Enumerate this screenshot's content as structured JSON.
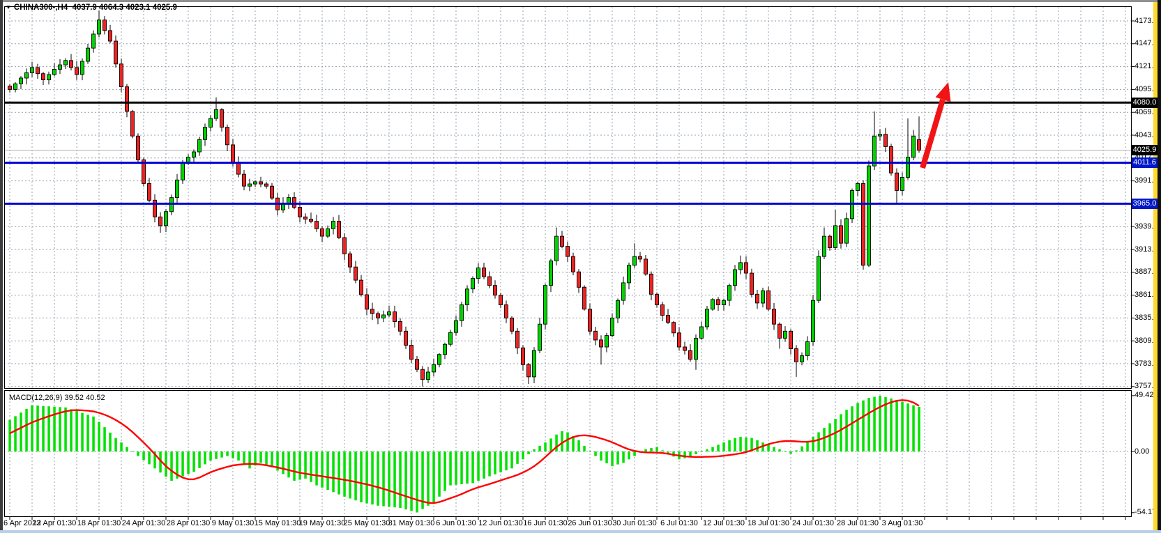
{
  "ui": {
    "title": {
      "dropdown_icon": "▼",
      "symbol_tf": "CHINA300-,H4",
      "ohlc": "4037.9 4064.3 4023.1 4025.9"
    },
    "colors": {
      "candle_up": "#00d200",
      "candle_down": "#ee2222",
      "candle_outline": "#000000",
      "macd_histogram": "#00e100",
      "macd_signal": "#ff0000",
      "level_black": "#000000",
      "level_blue": "#0000d2",
      "current_price_line": "#b0b0b0",
      "grid": "#95a1af",
      "arrow": "#f01414",
      "badge_black_bg": "#000000",
      "badge_blue_bg": "#0018c8",
      "axis_text": "#000000",
      "right_edge_yellow": "#ffd92e"
    }
  },
  "chart_data": {
    "type": "candlestick",
    "symbol": "CHINA300-",
    "timeframe": "H4",
    "current_ohlc": {
      "open": 4037.9,
      "high": 4064.3,
      "low": 4023.1,
      "close": 4025.9
    },
    "price_axis": {
      "tick_labels": [
        "4173.0",
        "4147.0",
        "4121.0",
        "4095.0",
        "4069.0",
        "4043.0",
        "4017.0",
        "3991.0",
        "3965.0",
        "3939.0",
        "3913.0",
        "3887.0",
        "3861.0",
        "3835.0",
        "3809.0",
        "3783.0",
        "3757.0"
      ],
      "badges": [
        {
          "label": "4080.0",
          "price": 4080.0,
          "bg": "#000000"
        },
        {
          "label": "4025.9",
          "price": 4025.9,
          "bg": "#000000"
        },
        {
          "label": "4011.6",
          "price": 4011.6,
          "bg": "#0018c8"
        },
        {
          "label": "3965.0",
          "price": 3965.0,
          "bg": "#0018c8"
        }
      ]
    },
    "levels": {
      "resistance_black": 4080.0,
      "current_price": 4025.9,
      "support_blue_upper": 4011.6,
      "support_blue_lower": 3965.0
    },
    "time_axis": {
      "labels": [
        "6 Apr 2023",
        "12 Apr 01:30",
        "18 Apr 01:30",
        "24 Apr 01:30",
        "28 Apr 01:30",
        "9 May 01:30",
        "15 May 01:30",
        "19 May 01:30",
        "25 May 01:30",
        "31 May 01:30",
        "6 Jun 01:30",
        "12 Jun 01:30",
        "16 Jun 01:30",
        "26 Jun 01:30",
        "30 Jun 01:30",
        "6 Jul 01:30",
        "12 Jul 01:30",
        "18 Jul 01:30",
        "24 Jul 01:30",
        "28 Jul 01:30",
        "3 Aug 01:30"
      ]
    },
    "candles": {
      "count": 164,
      "close_keyframes": [
        [
          0,
          4095
        ],
        [
          2,
          4108
        ],
        [
          4,
          4120
        ],
        [
          6,
          4106
        ],
        [
          8,
          4118
        ],
        [
          10,
          4128
        ],
        [
          12,
          4112
        ],
        [
          14,
          4142
        ],
        [
          16,
          4174
        ],
        [
          18,
          4150
        ],
        [
          20,
          4098
        ],
        [
          22,
          4042
        ],
        [
          24,
          3988
        ],
        [
          26,
          3950
        ],
        [
          27,
          3940
        ],
        [
          29,
          3972
        ],
        [
          31,
          4012
        ],
        [
          33,
          4024
        ],
        [
          35,
          4052
        ],
        [
          37,
          4072
        ],
        [
          39,
          4032
        ],
        [
          40,
          4012
        ],
        [
          42,
          3985
        ],
        [
          44,
          3990
        ],
        [
          46,
          3985
        ],
        [
          48,
          3958
        ],
        [
          50,
          3972
        ],
        [
          52,
          3950
        ],
        [
          54,
          3945
        ],
        [
          56,
          3928
        ],
        [
          58,
          3945
        ],
        [
          60,
          3908
        ],
        [
          62,
          3878
        ],
        [
          64,
          3845
        ],
        [
          66,
          3835
        ],
        [
          68,
          3842
        ],
        [
          70,
          3820
        ],
        [
          72,
          3788
        ],
        [
          74,
          3765
        ],
        [
          76,
          3782
        ],
        [
          78,
          3805
        ],
        [
          80,
          3832
        ],
        [
          82,
          3868
        ],
        [
          84,
          3892
        ],
        [
          86,
          3872
        ],
        [
          88,
          3850
        ],
        [
          90,
          3820
        ],
        [
          92,
          3782
        ],
        [
          93,
          3768
        ],
        [
          95,
          3828
        ],
        [
          96,
          3872
        ],
        [
          98,
          3928
        ],
        [
          100,
          3905
        ],
        [
          102,
          3870
        ],
        [
          104,
          3820
        ],
        [
          105,
          3810
        ],
        [
          106,
          3802
        ],
        [
          107,
          3815
        ],
        [
          108,
          3835
        ],
        [
          110,
          3875
        ],
        [
          111,
          3895
        ],
        [
          112,
          3905
        ],
        [
          113,
          3902
        ],
        [
          114,
          3885
        ],
        [
          115,
          3862
        ],
        [
          116,
          3850
        ],
        [
          117,
          3838
        ],
        [
          118,
          3830
        ],
        [
          119,
          3818
        ],
        [
          120,
          3802
        ],
        [
          121,
          3798
        ],
        [
          122,
          3788
        ],
        [
          123,
          3812
        ],
        [
          124,
          3825
        ],
        [
          125,
          3845
        ],
        [
          126,
          3856
        ],
        [
          127,
          3850
        ],
        [
          128,
          3855
        ],
        [
          129,
          3872
        ],
        [
          130,
          3890
        ],
        [
          131,
          3898
        ],
        [
          132,
          3886
        ],
        [
          133,
          3862
        ],
        [
          134,
          3852
        ],
        [
          135,
          3866
        ],
        [
          136,
          3845
        ],
        [
          137,
          3828
        ],
        [
          138,
          3812
        ],
        [
          139,
          3820
        ],
        [
          140,
          3800
        ],
        [
          141,
          3785
        ],
        [
          142,
          3792
        ],
        [
          143,
          3808
        ],
        [
          144,
          3855
        ],
        [
          145,
          3905
        ],
        [
          146,
          3928
        ],
        [
          147,
          3915
        ],
        [
          148,
          3940
        ],
        [
          149,
          3920
        ],
        [
          150,
          3948
        ],
        [
          151,
          3980
        ],
        [
          152,
          3988
        ],
        [
          153,
          3895
        ],
        [
          154,
          4008
        ],
        [
          155,
          4042
        ],
        [
          156,
          4044
        ],
        [
          157,
          4030
        ],
        [
          158,
          4000
        ],
        [
          159,
          3980
        ],
        [
          160,
          3995
        ],
        [
          161,
          4018
        ],
        [
          162,
          4042
        ],
        [
          163,
          4025.9
        ]
      ],
      "wick_events": [
        [
          16,
          "h",
          4185
        ],
        [
          27,
          "l",
          3932
        ],
        [
          37,
          "h",
          4086
        ],
        [
          74,
          "l",
          3757.1
        ],
        [
          93,
          "l",
          3760
        ],
        [
          98,
          "h",
          3938
        ],
        [
          106,
          "l",
          3782
        ],
        [
          112,
          "h",
          3920
        ],
        [
          123,
          "l",
          3776
        ],
        [
          131,
          "h",
          3906
        ],
        [
          138,
          "l",
          3800
        ],
        [
          141,
          "l",
          3768
        ],
        [
          146,
          "h",
          3938
        ],
        [
          148,
          "h",
          3958
        ],
        [
          153,
          "l",
          3890
        ],
        [
          155,
          "h",
          4070
        ],
        [
          159,
          "l",
          3966
        ],
        [
          161,
          "h",
          4062
        ]
      ]
    },
    "macd": {
      "label": "MACD(12,26,9) 39.52 40.52",
      "params": "12,26,9",
      "macd_value": 39.52,
      "signal_value": 40.52,
      "axis_ticks": [
        "49.42",
        "0.00",
        "-54.17"
      ],
      "axis_values": [
        49.42,
        0.0,
        -54.17
      ],
      "hist_keyframes": [
        [
          0,
          28
        ],
        [
          4,
          41
        ],
        [
          10,
          39
        ],
        [
          15,
          31
        ],
        [
          19,
          12
        ],
        [
          23,
          -4
        ],
        [
          29,
          -26
        ],
        [
          33,
          -18
        ],
        [
          36,
          -8
        ],
        [
          39,
          -4
        ],
        [
          41,
          -8
        ],
        [
          43,
          -15
        ],
        [
          45,
          -10
        ],
        [
          47,
          -14
        ],
        [
          49,
          -20
        ],
        [
          51,
          -26
        ],
        [
          53,
          -24
        ],
        [
          55,
          -30
        ],
        [
          57,
          -34
        ],
        [
          60,
          -40
        ],
        [
          63,
          -45
        ],
        [
          66,
          -48
        ],
        [
          70,
          -50
        ],
        [
          73,
          -54
        ],
        [
          76,
          -45
        ],
        [
          79,
          -30
        ],
        [
          83,
          -28
        ],
        [
          86,
          -22
        ],
        [
          90,
          -15
        ],
        [
          92,
          -7
        ],
        [
          94,
          2
        ],
        [
          96,
          8
        ],
        [
          98,
          15
        ],
        [
          99,
          18
        ],
        [
          100,
          17
        ],
        [
          102,
          10
        ],
        [
          104,
          0
        ],
        [
          106,
          -8
        ],
        [
          108,
          -13
        ],
        [
          110,
          -10
        ],
        [
          112,
          -4
        ],
        [
          114,
          2
        ],
        [
          116,
          4
        ],
        [
          118,
          -2
        ],
        [
          120,
          -7
        ],
        [
          122,
          -5
        ],
        [
          124,
          0
        ],
        [
          126,
          4
        ],
        [
          128,
          8
        ],
        [
          130,
          12
        ],
        [
          131,
          13
        ],
        [
          133,
          12
        ],
        [
          135,
          8
        ],
        [
          137,
          4
        ],
        [
          139,
          0
        ],
        [
          140,
          -2
        ],
        [
          141,
          1
        ],
        [
          143,
          8
        ],
        [
          144,
          13
        ],
        [
          146,
          21
        ],
        [
          148,
          29
        ],
        [
          150,
          37
        ],
        [
          152,
          43
        ],
        [
          154,
          47.5
        ],
        [
          156,
          49.4
        ],
        [
          158,
          47
        ],
        [
          160,
          44
        ],
        [
          162,
          41
        ],
        [
          163,
          39.52
        ]
      ],
      "signal_keyframes": [
        [
          0,
          16
        ],
        [
          4,
          26
        ],
        [
          8,
          33
        ],
        [
          11,
          37
        ],
        [
          15,
          36
        ],
        [
          18,
          31
        ],
        [
          21,
          22
        ],
        [
          24,
          8
        ],
        [
          26,
          -2
        ],
        [
          28,
          -14
        ],
        [
          31,
          -24
        ],
        [
          33,
          -26
        ],
        [
          36,
          -18
        ],
        [
          40,
          -12
        ],
        [
          44,
          -10.5
        ],
        [
          48,
          -14
        ],
        [
          52,
          -19
        ],
        [
          56,
          -22
        ],
        [
          60,
          -25
        ],
        [
          64,
          -29
        ],
        [
          67,
          -33
        ],
        [
          70,
          -38
        ],
        [
          73,
          -43
        ],
        [
          76,
          -47
        ],
        [
          78,
          -43
        ],
        [
          81,
          -38
        ],
        [
          83,
          -33
        ],
        [
          86,
          -29
        ],
        [
          88,
          -25.5
        ],
        [
          91,
          -21
        ],
        [
          93,
          -16.5
        ],
        [
          95,
          -10
        ],
        [
          97,
          0
        ],
        [
          99,
          8
        ],
        [
          101,
          13.5
        ],
        [
          103,
          15
        ],
        [
          105,
          13
        ],
        [
          108,
          8.5
        ],
        [
          110,
          3.5
        ],
        [
          112,
          0
        ],
        [
          114,
          -1
        ],
        [
          117,
          -1
        ],
        [
          119,
          -3
        ],
        [
          122,
          -5
        ],
        [
          127,
          -4.5
        ],
        [
          130,
          -2.5
        ],
        [
          132,
          -1
        ],
        [
          133,
          1
        ],
        [
          135,
          5
        ],
        [
          137,
          8
        ],
        [
          139,
          9.7
        ],
        [
          141,
          9
        ],
        [
          143,
          8
        ],
        [
          145,
          10
        ],
        [
          147,
          14
        ],
        [
          149,
          19
        ],
        [
          151,
          25
        ],
        [
          153,
          31
        ],
        [
          155,
          37
        ],
        [
          157,
          42
        ],
        [
          159,
          45.5
        ],
        [
          161,
          46
        ],
        [
          162,
          44
        ],
        [
          163,
          40.52
        ]
      ]
    },
    "annotations": [
      {
        "type": "arrow",
        "color": "#f01414",
        "direction": "up-right",
        "from_price": 4010,
        "to_price": 4082
      }
    ]
  }
}
